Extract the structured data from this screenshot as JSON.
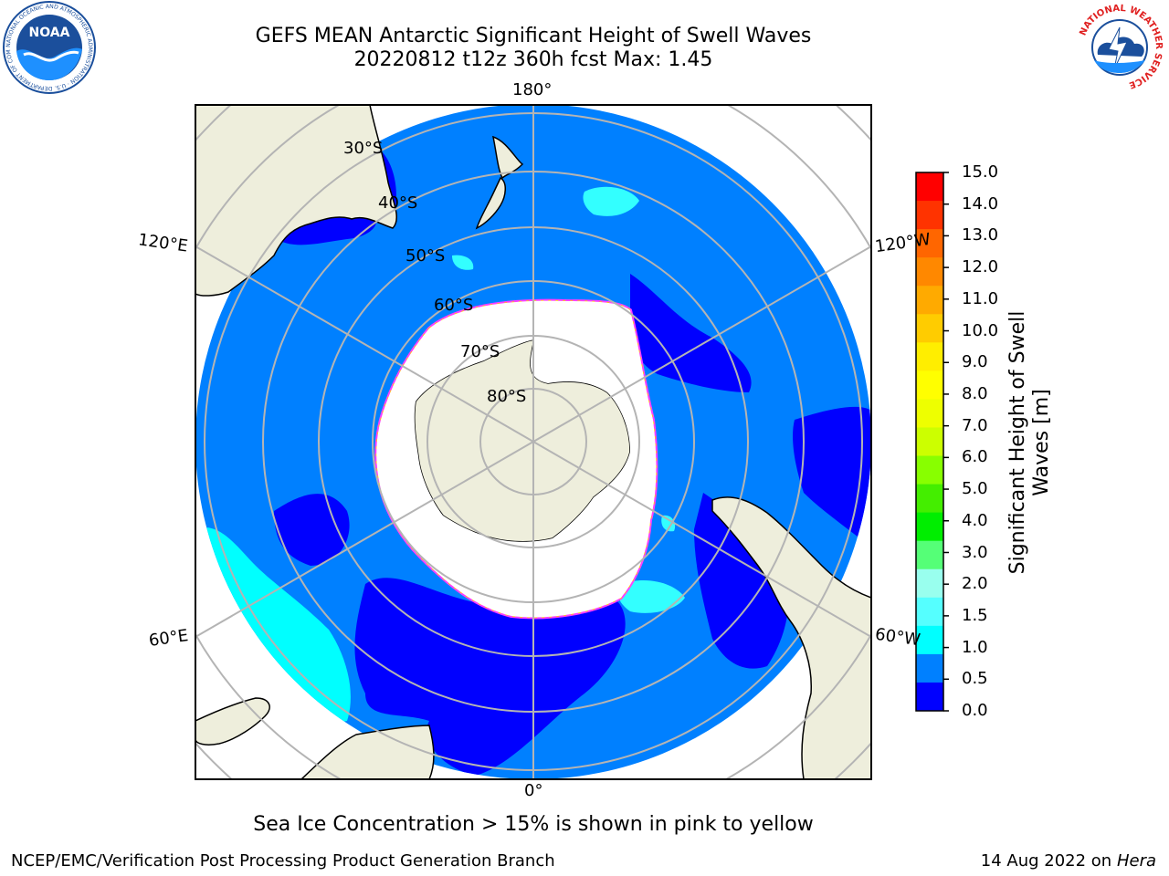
{
  "header": {
    "title_line1": "GEFS MEAN Antarctic Significant Height of Swell Waves",
    "title_line2": "20220812 t12z 360h fcst   Max: 1.45"
  },
  "logos": {
    "noaa": {
      "text": "NOAA",
      "ring_text": "NATIONAL OCEANIC AND ATMOSPHERIC ADMINISTRATION · U.S. DEPARTMENT OF COMMERCE"
    },
    "nws": {
      "ring_text": "NATIONAL WEATHER SERVICE"
    }
  },
  "map": {
    "projection": "south polar stereographic",
    "longitude_labels": {
      "top": "180°",
      "bottom": "0°",
      "upper_left": "120°E",
      "upper_right": "120°W",
      "lower_left": "60°E",
      "lower_right": "60°W"
    },
    "latitude_labels": [
      "30°S",
      "40°S",
      "50°S",
      "60°S",
      "70°S",
      "80°S"
    ],
    "colors": {
      "ocean_low": "#0000ff",
      "ocean_mid": "#0080ff",
      "swell_cyan": "#00ffff",
      "land": "#eeeedc",
      "grid": "#b4b4b4",
      "sea_ice": "#ffffff",
      "sea_ice_edge": "#ff40ff"
    }
  },
  "colorbar": {
    "label": "Significant Height of Swell Waves [m]",
    "ticks": [
      "15.0",
      "14.0",
      "13.0",
      "12.0",
      "11.0",
      "10.0",
      "9.0",
      "8.0",
      "7.0",
      "6.0",
      "5.0",
      "4.0",
      "3.0",
      "2.0",
      "1.5",
      "1.0",
      "0.5",
      "0.0"
    ],
    "colors_top_to_bottom": [
      "#ff0000",
      "#ff3300",
      "#ff6600",
      "#ff8800",
      "#ffaa00",
      "#ffcc00",
      "#ffee00",
      "#ffff00",
      "#eeff00",
      "#ccff00",
      "#88ff00",
      "#44ee00",
      "#00ee00",
      "#55ff77",
      "#99ffee",
      "#55ffff",
      "#00ffff",
      "#0080ff",
      "#0000ff"
    ]
  },
  "footnote": "Sea Ice Concentration > 15% is shown in pink to yellow",
  "footer": {
    "left": "NCEP/EMC/Verification Post Processing Product Generation Branch",
    "right_date": "14 Aug 2022 on",
    "right_host": "Hera"
  }
}
